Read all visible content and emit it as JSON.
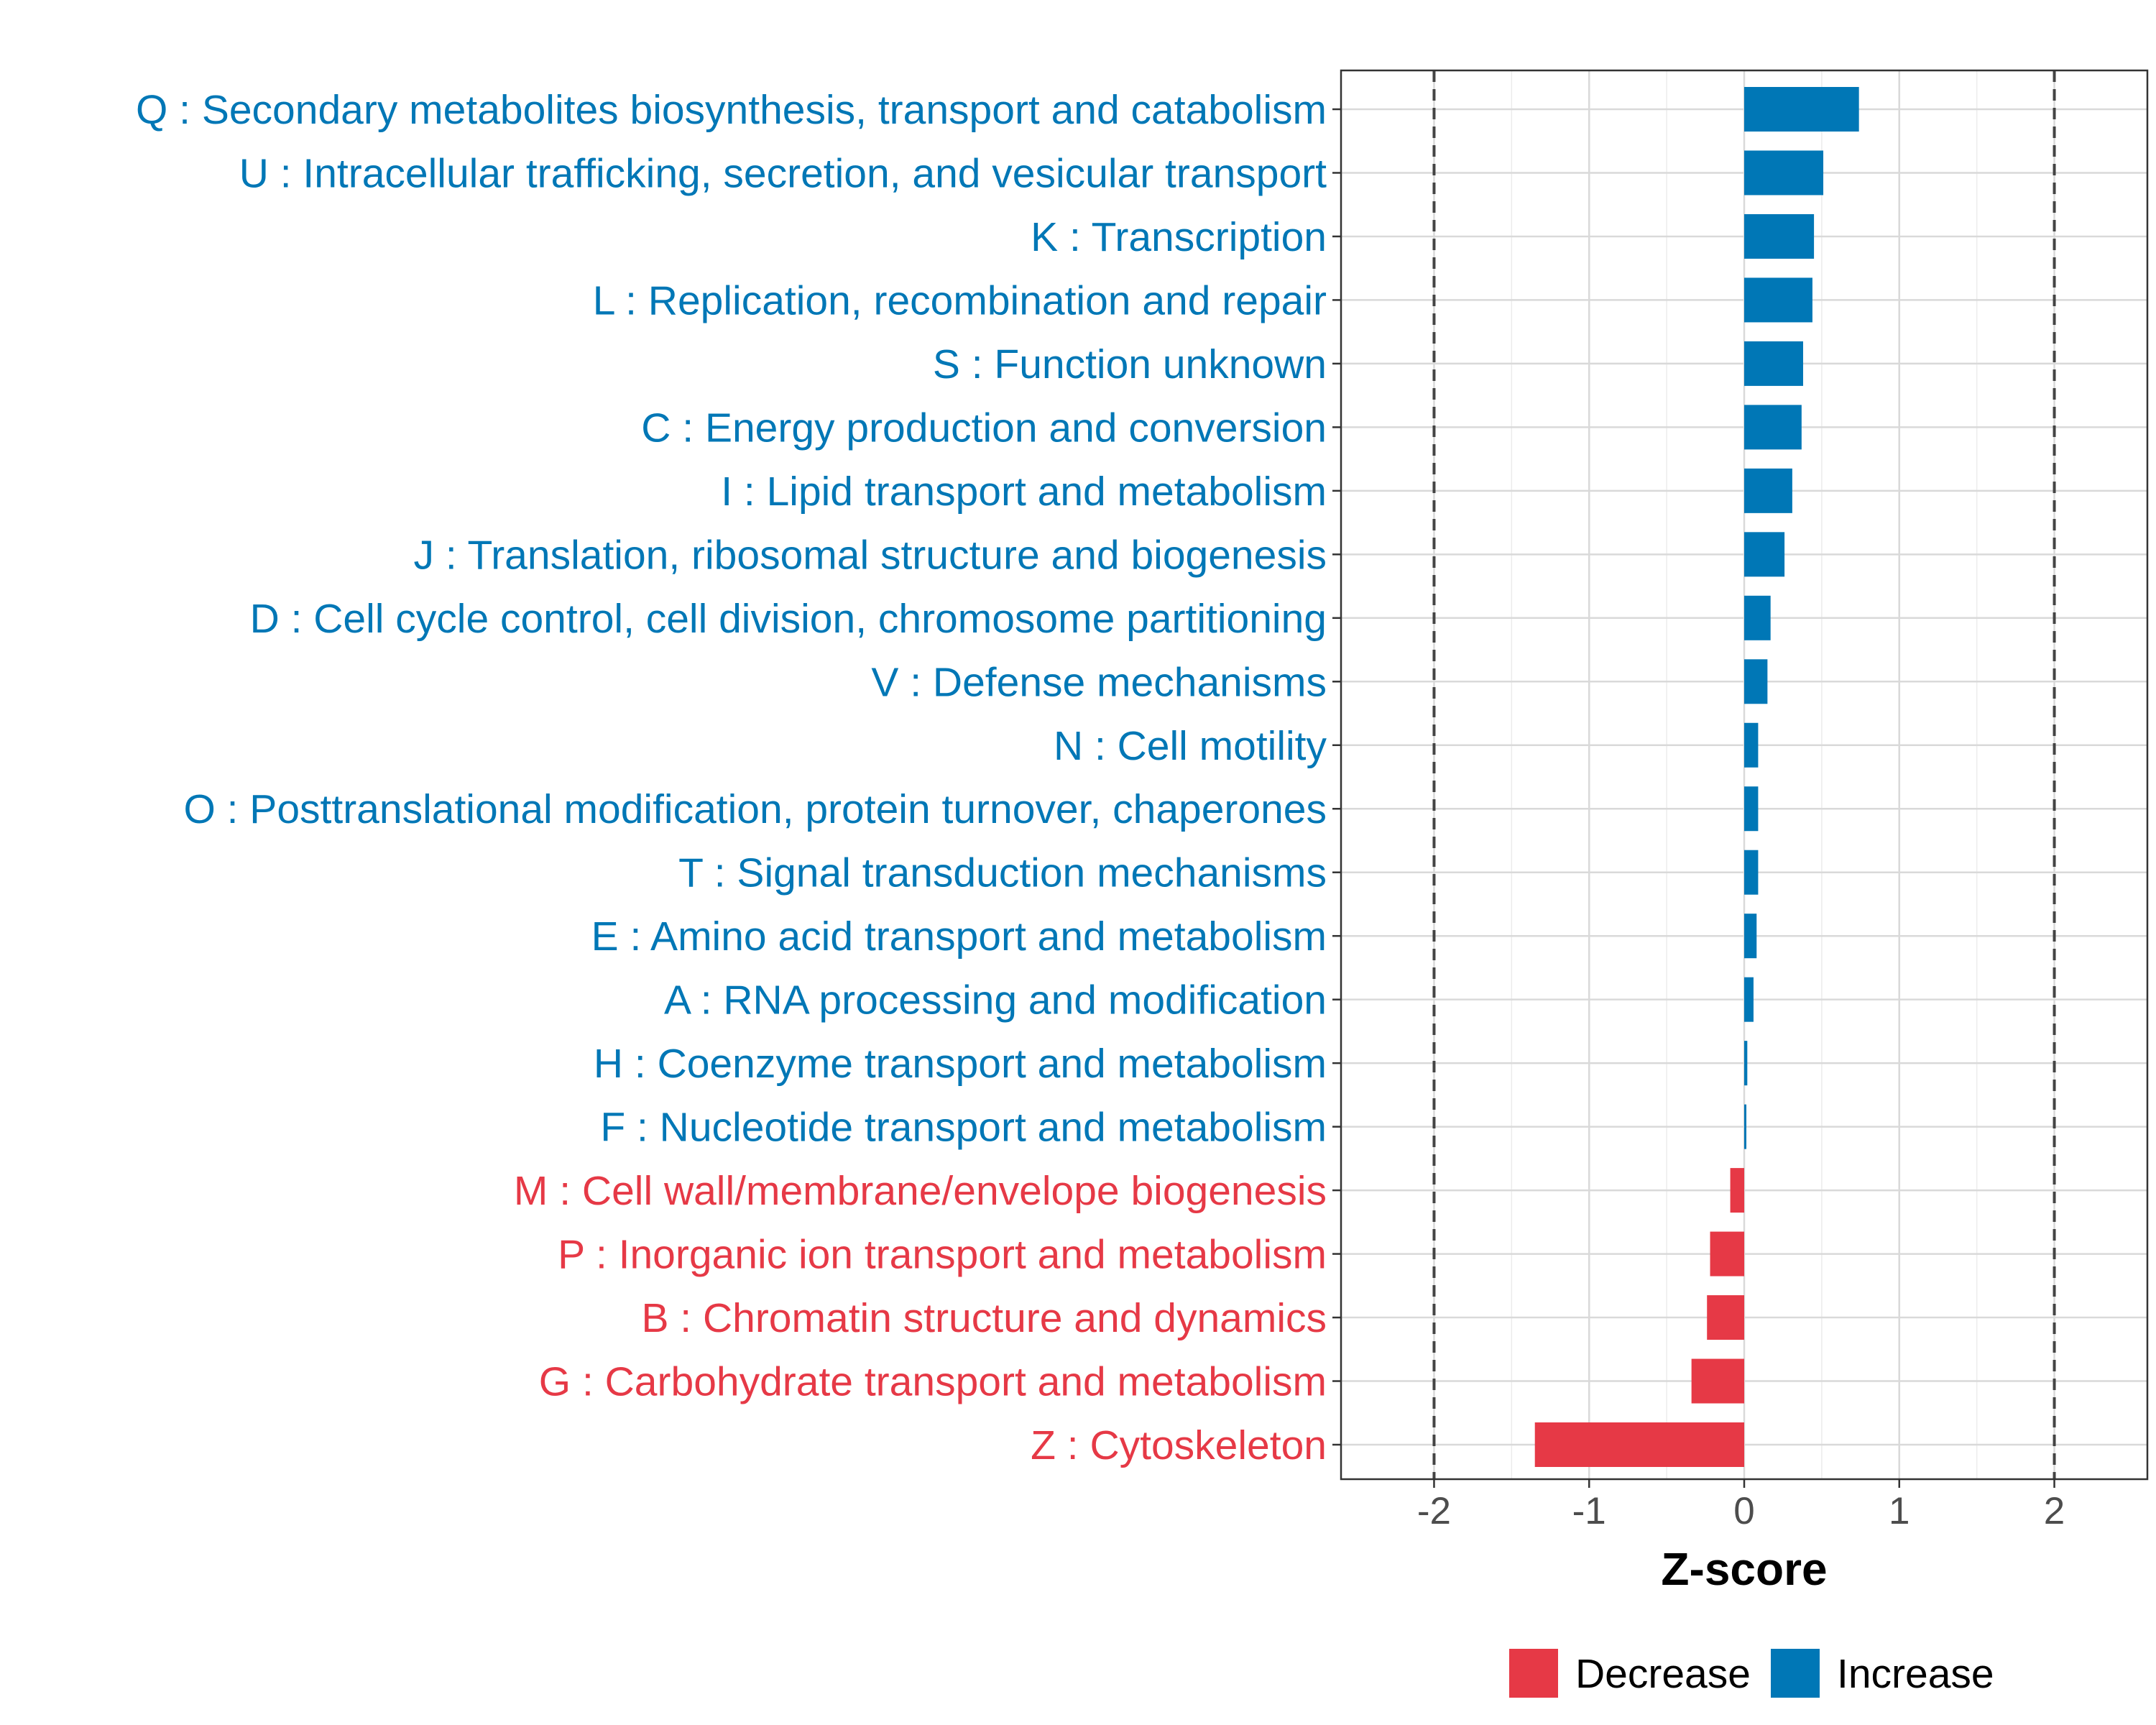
{
  "chart_data": {
    "type": "bar",
    "orientation": "horizontal",
    "xlabel": "Z-score",
    "ylabel": "",
    "xlim": [
      -2.6,
      2.6
    ],
    "x_ticks": [
      -2,
      -1,
      0,
      1,
      2
    ],
    "x_tick_labels": [
      "-2",
      "-1",
      "0",
      "1",
      "2"
    ],
    "reference_lines": [
      -2,
      2
    ],
    "grid": true,
    "legend_position": "bottom",
    "legend": [
      {
        "name": "Decrease",
        "color": "#E63946"
      },
      {
        "name": "Increase",
        "color": "#0077B6"
      }
    ],
    "categories": [
      {
        "label": "Q : Secondary metabolites biosynthesis, transport and catabolism",
        "value": 0.74,
        "group": "Increase"
      },
      {
        "label": "U : Intracellular trafficking, secretion, and vesicular transport",
        "value": 0.51,
        "group": "Increase"
      },
      {
        "label": "K : Transcription",
        "value": 0.45,
        "group": "Increase"
      },
      {
        "label": "L : Replication, recombination and repair",
        "value": 0.44,
        "group": "Increase"
      },
      {
        "label": "S : Function unknown",
        "value": 0.38,
        "group": "Increase"
      },
      {
        "label": "C : Energy production and conversion",
        "value": 0.37,
        "group": "Increase"
      },
      {
        "label": "I : Lipid transport and metabolism",
        "value": 0.31,
        "group": "Increase"
      },
      {
        "label": "J : Translation, ribosomal structure and biogenesis",
        "value": 0.26,
        "group": "Increase"
      },
      {
        "label": "D : Cell cycle control, cell division, chromosome partitioning",
        "value": 0.17,
        "group": "Increase"
      },
      {
        "label": "V : Defense mechanisms",
        "value": 0.15,
        "group": "Increase"
      },
      {
        "label": "N : Cell motility",
        "value": 0.09,
        "group": "Increase"
      },
      {
        "label": "O : Posttranslational modification, protein turnover, chaperones",
        "value": 0.09,
        "group": "Increase"
      },
      {
        "label": "T : Signal transduction mechanisms",
        "value": 0.09,
        "group": "Increase"
      },
      {
        "label": "E : Amino acid transport and metabolism",
        "value": 0.08,
        "group": "Increase"
      },
      {
        "label": "A : RNA processing and modification",
        "value": 0.06,
        "group": "Increase"
      },
      {
        "label": "H : Coenzyme transport and metabolism",
        "value": 0.02,
        "group": "Increase"
      },
      {
        "label": "F : Nucleotide transport and metabolism",
        "value": 0.01,
        "group": "Increase"
      },
      {
        "label": "M : Cell wall/membrane/envelope biogenesis",
        "value": -0.09,
        "group": "Decrease"
      },
      {
        "label": "P : Inorganic ion transport and metabolism",
        "value": -0.22,
        "group": "Decrease"
      },
      {
        "label": "B : Chromatin structure and dynamics",
        "value": -0.24,
        "group": "Decrease"
      },
      {
        "label": "G : Carbohydrate transport and metabolism",
        "value": -0.34,
        "group": "Decrease"
      },
      {
        "label": "Z : Cytoskeleton",
        "value": -1.35,
        "group": "Decrease"
      }
    ]
  }
}
